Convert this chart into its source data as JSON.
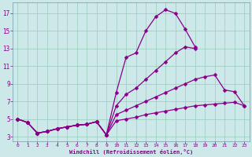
{
  "xlabel": "Windchill (Refroidissement éolien,°C)",
  "bg_color": "#cce8e8",
  "line_color": "#880088",
  "grid_color": "#99ccbb",
  "xlim": [
    -0.5,
    23.5
  ],
  "ylim": [
    2.5,
    18.2
  ],
  "yticks": [
    3,
    5,
    7,
    9,
    11,
    13,
    15,
    17
  ],
  "xticks": [
    0,
    1,
    2,
    3,
    4,
    5,
    6,
    7,
    8,
    9,
    10,
    11,
    12,
    13,
    14,
    15,
    16,
    17,
    18,
    19,
    20,
    21,
    22,
    23
  ],
  "line1_x": [
    0,
    1,
    2,
    3,
    4,
    5,
    6,
    7,
    8,
    9,
    10,
    11,
    12,
    13,
    14,
    15,
    16,
    17,
    18,
    19,
    20,
    21,
    22,
    23
  ],
  "line1_y": [
    5.0,
    4.6,
    3.4,
    3.6,
    3.9,
    4.1,
    4.3,
    4.4,
    4.7,
    3.2,
    8.0,
    12.0,
    12.5,
    15.0,
    16.6,
    17.4,
    17.0,
    15.2,
    13.2,
    null,
    null,
    null,
    null,
    null
  ],
  "line2_x": [
    0,
    1,
    2,
    3,
    4,
    5,
    6,
    7,
    8,
    9,
    10,
    11,
    12,
    13,
    14,
    15,
    16,
    17,
    18,
    19,
    20,
    21,
    22,
    23
  ],
  "line2_y": [
    5.0,
    4.6,
    3.4,
    3.6,
    3.9,
    4.1,
    4.3,
    4.4,
    4.7,
    3.2,
    6.5,
    7.8,
    8.5,
    9.5,
    10.5,
    11.5,
    12.5,
    13.2,
    13.0,
    null,
    null,
    null,
    null,
    null
  ],
  "line3_x": [
    0,
    1,
    2,
    3,
    4,
    5,
    6,
    7,
    8,
    9,
    10,
    11,
    12,
    13,
    14,
    15,
    16,
    17,
    18,
    19,
    20,
    21,
    22,
    23
  ],
  "line3_y": [
    5.0,
    4.6,
    3.4,
    3.6,
    3.9,
    4.1,
    4.3,
    4.4,
    4.7,
    3.2,
    5.5,
    6.0,
    6.5,
    7.0,
    7.5,
    8.0,
    8.5,
    9.0,
    9.5,
    9.8,
    10.0,
    8.3,
    8.1,
    6.5
  ],
  "line4_x": [
    0,
    1,
    2,
    3,
    4,
    5,
    6,
    7,
    8,
    9,
    10,
    11,
    12,
    13,
    14,
    15,
    16,
    17,
    18,
    19,
    20,
    21,
    22,
    23
  ],
  "line4_y": [
    5.0,
    4.6,
    3.4,
    3.6,
    3.9,
    4.1,
    4.3,
    4.4,
    4.7,
    3.2,
    4.8,
    5.0,
    5.2,
    5.5,
    5.7,
    5.9,
    6.1,
    6.3,
    6.5,
    6.6,
    6.7,
    6.8,
    6.9,
    6.5
  ],
  "marker": "D",
  "marker_size": 2.5
}
